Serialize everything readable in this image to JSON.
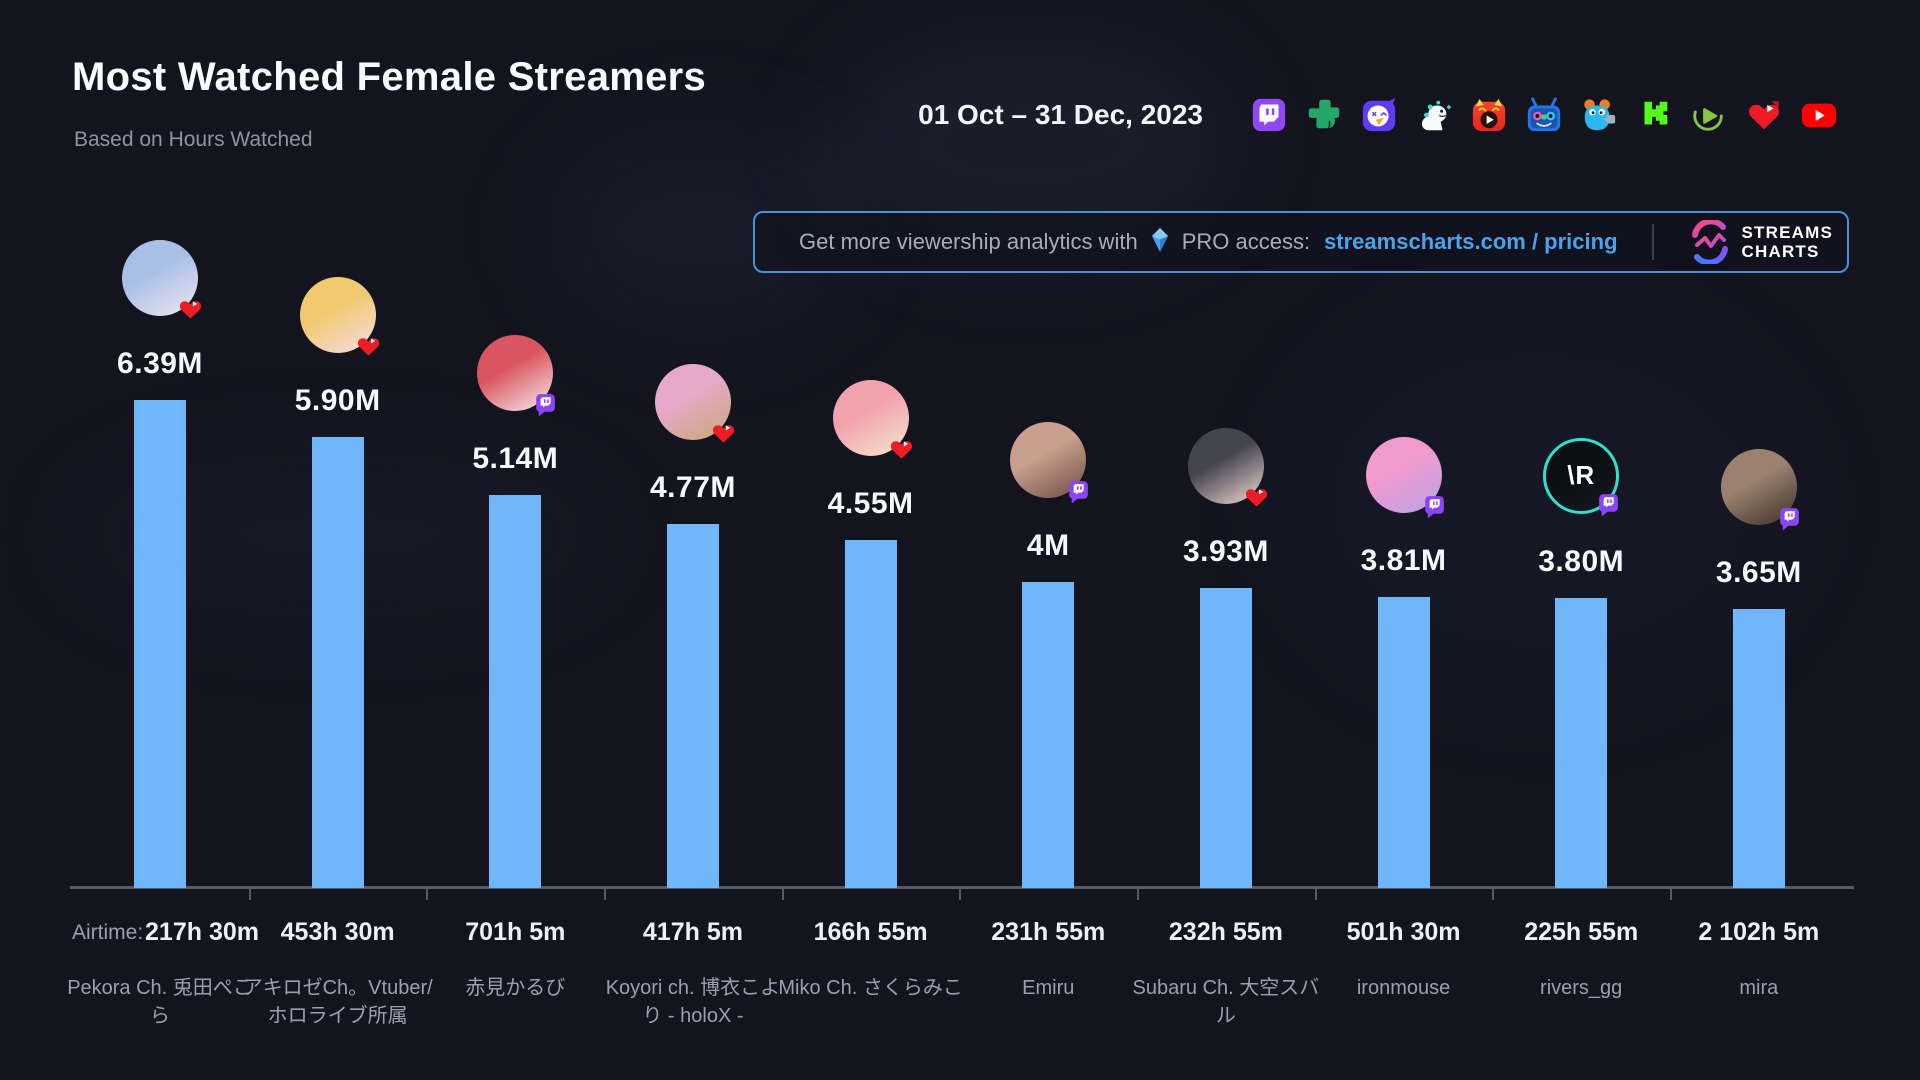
{
  "header": {
    "title": "Most Watched Female Streamers",
    "subtitle": "Based on Hours Watched",
    "period": "01 Oct – 31 Dec, 2023"
  },
  "platform_icons": [
    "twitch-icon",
    "trovo-icon",
    "nonolive-icon",
    "dino-mascot-icon",
    "nimo-tv-icon",
    "mildom-tv-icon",
    "bigo-mascot-icon",
    "kick-icon",
    "rumble-icon",
    "youtube-gaming-icon",
    "youtube-icon"
  ],
  "promo_banner": {
    "text": "Get more viewership analytics with",
    "gem_icon": "pro-gem-icon",
    "pro_text": "PRO access:",
    "link": "streamscharts.com / pricing",
    "brand": {
      "line1": "STREAMS",
      "line2": "CHARTS"
    }
  },
  "colors": {
    "background": "#14141f",
    "bar": "#70b7fa",
    "link": "#4aa4ec",
    "banner_border": "#4792d8",
    "axis": "#565b67",
    "muted_text": "#98a1b0",
    "twitch": "#9047f5",
    "youtube": "#ee1c25"
  },
  "chart_data": {
    "type": "bar",
    "title": "Most Watched Female Streamers",
    "subtitle": "Based on Hours Watched",
    "period": "01 Oct – 31 Dec, 2023",
    "unit": "millions of hours watched",
    "ylim_millions": [
      0,
      9.1
    ],
    "airtime_label": "Airtime:",
    "legend_position": "none",
    "grid": false,
    "streamers": [
      {
        "name": "Pekora Ch. 兎田ぺこら",
        "value_millions": 6.39,
        "value_label": "6.39M",
        "airtime": "217h 30m",
        "platform": "youtube",
        "avatar": {
          "colors": [
            "#a9bfe8",
            "#f0e8ee"
          ]
        }
      },
      {
        "name": "アキロゼCh。Vtuber/ホロライブ所属",
        "value_millions": 5.9,
        "value_label": "5.90M",
        "airtime": "453h 30m",
        "platform": "youtube",
        "avatar": {
          "colors": [
            "#f2c96f",
            "#f6dde6"
          ]
        }
      },
      {
        "name": "赤見かるび",
        "value_millions": 5.14,
        "value_label": "5.14M",
        "airtime": "701h 5m",
        "platform": "twitch",
        "avatar": {
          "colors": [
            "#d95560",
            "#f6eef0"
          ]
        }
      },
      {
        "name": "Koyori ch. 博衣こより - holoX -",
        "value_millions": 4.77,
        "value_label": "4.77M",
        "airtime": "417h 5m",
        "platform": "youtube",
        "avatar": {
          "colors": [
            "#e7a9c9",
            "#c9a878"
          ]
        }
      },
      {
        "name": "Miko Ch. さくらみこ",
        "value_millions": 4.55,
        "value_label": "4.55M",
        "airtime": "166h 55m",
        "platform": "youtube",
        "avatar": {
          "colors": [
            "#f2a2ad",
            "#f7e6cf"
          ]
        }
      },
      {
        "name": "Emiru",
        "value_millions": 4.0,
        "value_label": "4M",
        "airtime": "231h 55m",
        "platform": "twitch",
        "avatar": {
          "colors": [
            "#c9a08e",
            "#6e4b45"
          ]
        }
      },
      {
        "name": "Subaru Ch. 大空スバル",
        "value_millions": 3.93,
        "value_label": "3.93M",
        "airtime": "232h 55m",
        "platform": "youtube",
        "avatar": {
          "colors": [
            "#44444f",
            "#f4dcd2"
          ]
        }
      },
      {
        "name": "ironmouse",
        "value_millions": 3.81,
        "value_label": "3.81M",
        "airtime": "501h 30m",
        "platform": "twitch",
        "avatar": {
          "colors": [
            "#f09ace",
            "#b9a2e8"
          ]
        }
      },
      {
        "name": "rivers_gg",
        "value_millions": 3.8,
        "value_label": "3.80M",
        "airtime": "225h 55m",
        "platform": "twitch",
        "avatar": {
          "colors": [
            "#0b0e12",
            "#15191f"
          ],
          "ring": "#2fe0cf",
          "text": "\\R"
        }
      },
      {
        "name": "mira",
        "value_millions": 3.65,
        "value_label": "3.65M",
        "airtime": "2 102h 5m",
        "platform": "twitch",
        "avatar": {
          "colors": [
            "#9b8270",
            "#3c2f28"
          ]
        }
      }
    ]
  }
}
